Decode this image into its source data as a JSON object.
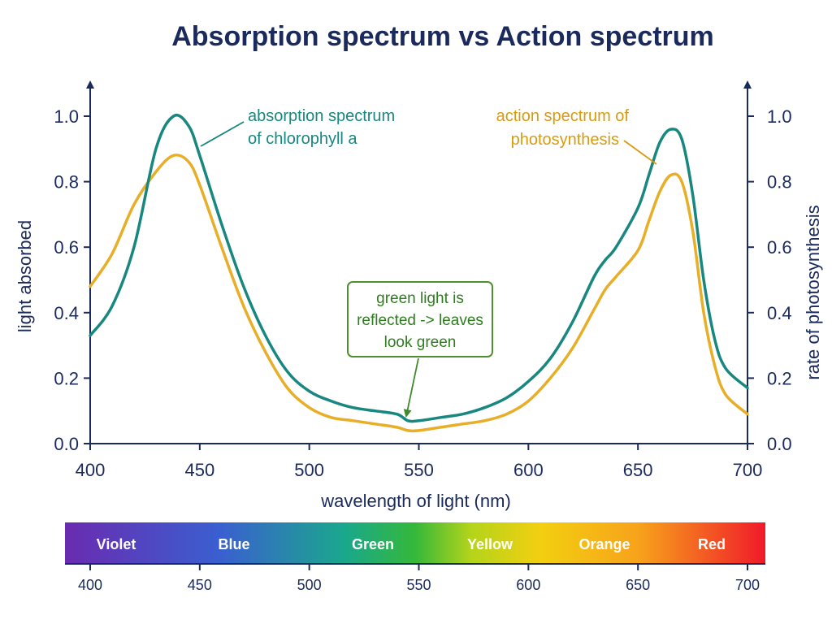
{
  "chart_data": {
    "type": "line",
    "title": "Absorption spectrum vs Action spectrum",
    "xlabel": "wavelength of light (nm)",
    "ylabel": "light absorbed",
    "ylabel_right": "rate of photosynthesis",
    "xlim": [
      400,
      700
    ],
    "ylim": [
      0,
      1.0
    ],
    "x_ticks": [
      "400",
      "450",
      "500",
      "550",
      "600",
      "650",
      "700"
    ],
    "y_ticks": [
      "0.0",
      "0.2",
      "0.4",
      "0.6",
      "0.8",
      "1.0"
    ],
    "x": [
      400,
      410,
      420,
      430,
      438,
      445,
      450,
      460,
      470,
      480,
      490,
      500,
      510,
      520,
      530,
      540,
      545,
      550,
      560,
      570,
      580,
      590,
      600,
      610,
      620,
      630,
      635,
      640,
      650,
      655,
      660,
      665,
      670,
      675,
      680,
      685,
      690,
      700
    ],
    "series": [
      {
        "name": "absorption spectrum of chlorophyll a",
        "color": "#17877f",
        "values": [
          0.33,
          0.42,
          0.6,
          0.9,
          1.0,
          0.97,
          0.88,
          0.67,
          0.48,
          0.33,
          0.22,
          0.16,
          0.13,
          0.11,
          0.1,
          0.09,
          0.07,
          0.07,
          0.08,
          0.09,
          0.11,
          0.14,
          0.19,
          0.26,
          0.37,
          0.51,
          0.56,
          0.6,
          0.72,
          0.82,
          0.92,
          0.96,
          0.93,
          0.76,
          0.5,
          0.32,
          0.23,
          0.17
        ]
      },
      {
        "name": "action spectrum of photosynthesis",
        "color": "#e8ae27",
        "values": [
          0.48,
          0.58,
          0.73,
          0.83,
          0.88,
          0.86,
          0.79,
          0.6,
          0.42,
          0.28,
          0.17,
          0.11,
          0.08,
          0.07,
          0.06,
          0.05,
          0.04,
          0.04,
          0.05,
          0.06,
          0.07,
          0.09,
          0.13,
          0.2,
          0.29,
          0.41,
          0.47,
          0.51,
          0.59,
          0.68,
          0.77,
          0.82,
          0.8,
          0.65,
          0.4,
          0.24,
          0.15,
          0.09
        ]
      }
    ],
    "annotations": [
      {
        "lines": [
          "absorption spectrum",
          "of chlorophyll a"
        ],
        "points_to": [
          445,
          0.97
        ]
      },
      {
        "lines": [
          "action spectrum of",
          "photosynthesis"
        ],
        "points_to": [
          655,
          0.85
        ]
      },
      {
        "lines": [
          "green light is",
          "reflected -> leaves",
          "look green"
        ],
        "points_to": [
          545,
          0.07
        ]
      }
    ],
    "spectrum_band": {
      "labels": [
        "Violet",
        "Blue",
        "Green",
        "Yellow",
        "Orange",
        "Red"
      ],
      "ticks": [
        "400",
        "450",
        "500",
        "550",
        "600",
        "650",
        "700"
      ]
    },
    "grid": false
  }
}
